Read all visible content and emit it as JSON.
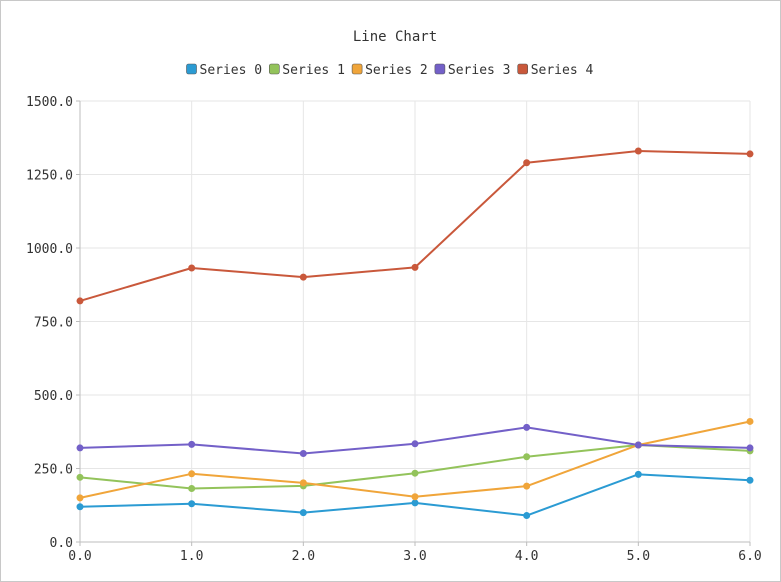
{
  "chart_data": {
    "type": "line",
    "title": "Line Chart",
    "xlabel": "",
    "ylabel": "",
    "x": [
      0.0,
      1.0,
      2.0,
      3.0,
      4.0,
      5.0,
      6.0
    ],
    "x_tick_labels": [
      "0.0",
      "1.0",
      "2.0",
      "3.0",
      "4.0",
      "5.0",
      "6.0"
    ],
    "y_tick_labels": [
      "0.0",
      "250.0",
      "500.0",
      "750.0",
      "1000.0",
      "1250.0",
      "1500.0"
    ],
    "y_ticks": [
      0,
      250,
      500,
      750,
      1000,
      1250,
      1500
    ],
    "xlim": [
      0,
      6
    ],
    "ylim": [
      0,
      1500
    ],
    "grid": true,
    "legend_position": "top",
    "series": [
      {
        "name": "Series 0",
        "color": "#2b9bd3",
        "values": [
          120,
          130,
          100,
          133,
          90,
          230,
          210
        ]
      },
      {
        "name": "Series 1",
        "color": "#93c35b",
        "values": [
          220,
          182,
          191,
          234,
          290,
          330,
          310
        ]
      },
      {
        "name": "Series 2",
        "color": "#f0a53a",
        "values": [
          150,
          232,
          201,
          154,
          190,
          330,
          410
        ]
      },
      {
        "name": "Series 3",
        "color": "#7360c8",
        "values": [
          320,
          332,
          301,
          334,
          390,
          330,
          320
        ]
      },
      {
        "name": "Series 4",
        "color": "#c9583b",
        "values": [
          820,
          932,
          901,
          934,
          1290,
          1330,
          1320
        ]
      }
    ]
  }
}
